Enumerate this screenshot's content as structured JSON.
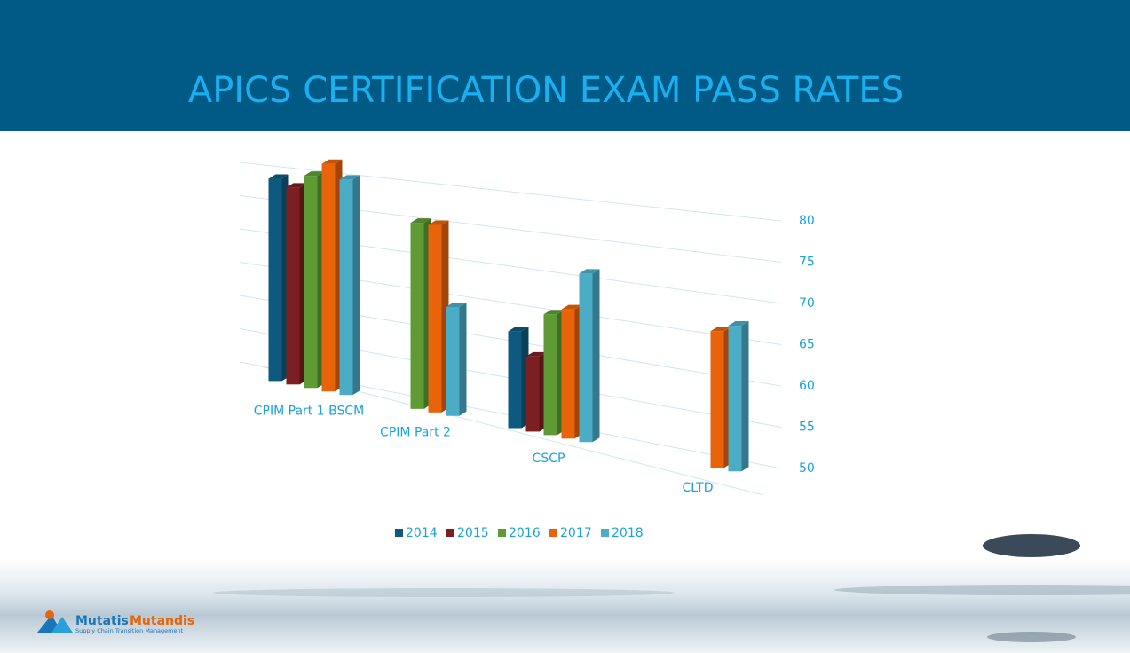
{
  "chart_data": {
    "type": "bar3d",
    "title": "APICS CERTIFICATION EXAM PASS RATES",
    "categories": [
      "CPIM Part 1 BSCM",
      "CPIM Part 2",
      "CSCP",
      "CLTD"
    ],
    "series": [
      {
        "name": "2014",
        "color": "#0e5a7e",
        "values": [
          80,
          null,
          63,
          null
        ]
      },
      {
        "name": "2015",
        "color": "#7b1f22",
        "values": [
          79,
          null,
          60,
          null
        ]
      },
      {
        "name": "2016",
        "color": "#5e9b35",
        "values": [
          81,
          76,
          66,
          null
        ]
      },
      {
        "name": "2017",
        "color": "#e8630a",
        "values": [
          83,
          76,
          67,
          67
        ]
      },
      {
        "name": "2018",
        "color": "#4bacc6",
        "values": [
          81,
          65,
          72,
          68
        ]
      }
    ],
    "ylim": [
      50,
      80
    ],
    "yticks": [
      50,
      55,
      60,
      65,
      70,
      75,
      80
    ],
    "grid": true,
    "legend": "bottom"
  },
  "logo": {
    "name1": "Mutatis",
    "name2": "Mutandis",
    "tagline": "Supply Chain Transition Management"
  }
}
